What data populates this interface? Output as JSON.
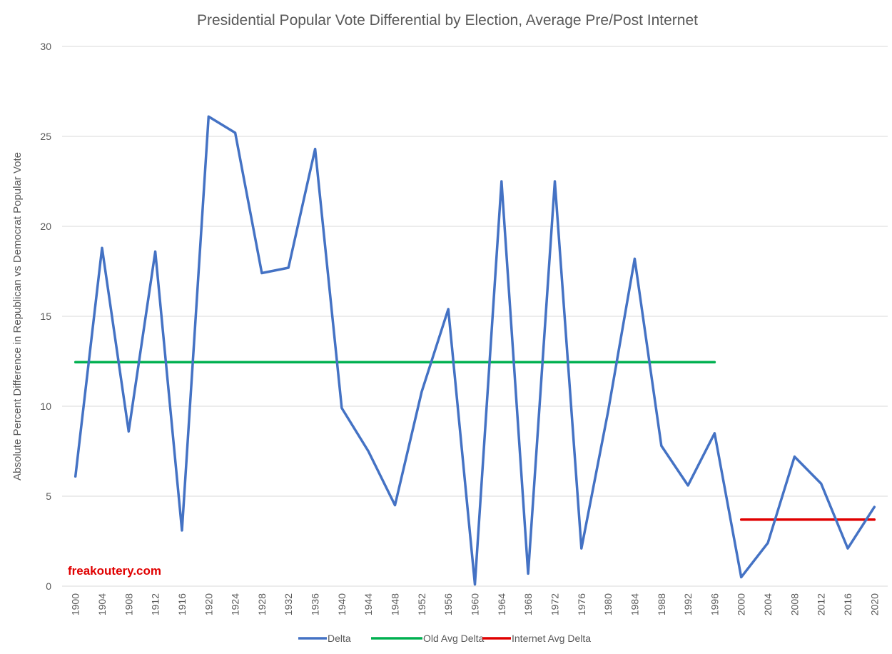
{
  "watermark": "freakoutery.com",
  "colors": {
    "delta": "#4472c4",
    "old_avg": "#00b050",
    "internet_avg": "#e00000",
    "grid": "#d9d9d9",
    "text": "#595959"
  },
  "chart_data": {
    "type": "line",
    "title": "Presidential Popular Vote Differential by Election, Average Pre/Post Internet",
    "xlabel": "",
    "ylabel": "Absolute Percent Difference in Republican vs Democrat Popular Vote",
    "ylim": [
      0,
      30
    ],
    "yticks": [
      0,
      5,
      10,
      15,
      20,
      25,
      30
    ],
    "grid": true,
    "legend_position": "bottom",
    "categories": [
      "1900",
      "1904",
      "1908",
      "1912",
      "1916",
      "1920",
      "1924",
      "1928",
      "1932",
      "1936",
      "1940",
      "1944",
      "1948",
      "1952",
      "1956",
      "1960",
      "1964",
      "1968",
      "1972",
      "1976",
      "1980",
      "1984",
      "1988",
      "1992",
      "1996",
      "2000",
      "2004",
      "2008",
      "2012",
      "2016",
      "2020"
    ],
    "series": [
      {
        "name": "Delta",
        "color": "#4472c4",
        "values": [
          6.1,
          18.8,
          8.6,
          18.6,
          3.1,
          26.1,
          25.2,
          17.4,
          17.7,
          24.3,
          9.9,
          7.5,
          4.5,
          10.8,
          15.4,
          0.1,
          22.5,
          0.7,
          22.5,
          2.1,
          9.7,
          18.2,
          7.8,
          5.6,
          8.5,
          0.5,
          2.4,
          7.2,
          5.7,
          2.1,
          4.4
        ]
      },
      {
        "name": "Old Avg Delta",
        "color": "#00b050",
        "values": [
          12.45,
          12.45,
          12.45,
          12.45,
          12.45,
          12.45,
          12.45,
          12.45,
          12.45,
          12.45,
          12.45,
          12.45,
          12.45,
          12.45,
          12.45,
          12.45,
          12.45,
          12.45,
          12.45,
          12.45,
          12.45,
          12.45,
          12.45,
          12.45,
          12.45,
          null,
          null,
          null,
          null,
          null,
          null
        ]
      },
      {
        "name": "Internet Avg Delta",
        "color": "#e00000",
        "values": [
          null,
          null,
          null,
          null,
          null,
          null,
          null,
          null,
          null,
          null,
          null,
          null,
          null,
          null,
          null,
          null,
          null,
          null,
          null,
          null,
          null,
          null,
          null,
          null,
          null,
          3.7,
          3.7,
          3.7,
          3.7,
          3.7,
          3.7
        ]
      }
    ]
  }
}
